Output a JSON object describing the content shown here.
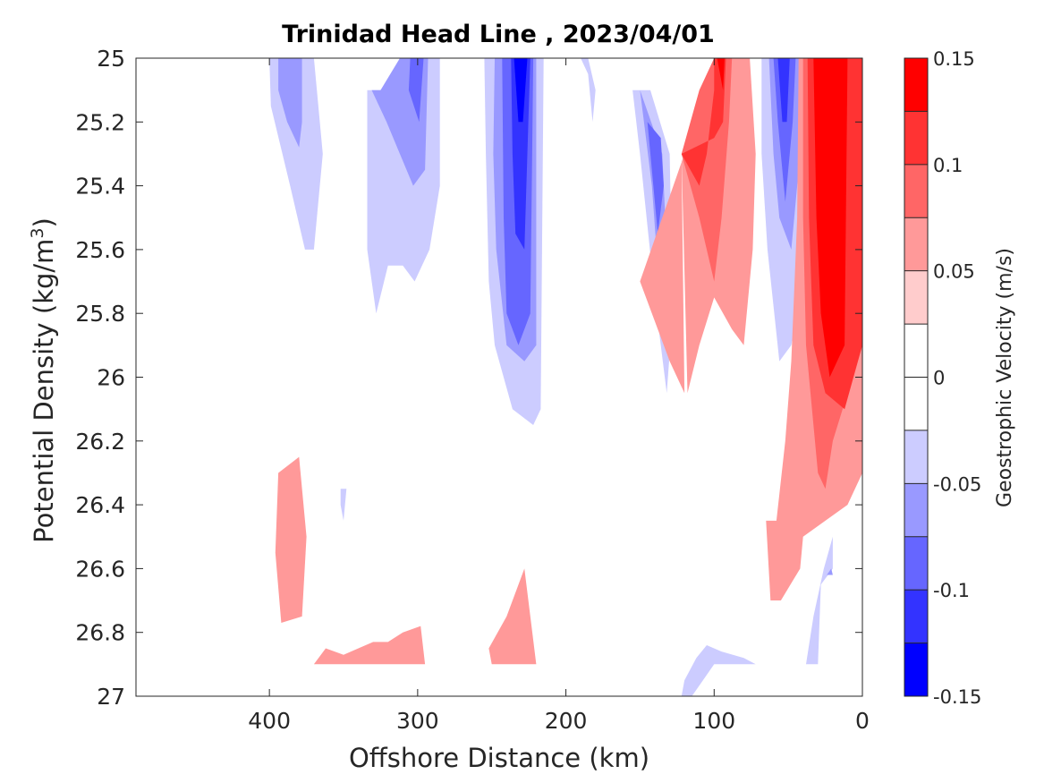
{
  "chart_data": {
    "type": "contour",
    "title": "Trinidad Head Line , 2023/04/01",
    "xlabel": "Offshore Distance (km)",
    "ylabel_main": "Potential Density (kg/m",
    "ylabel_sup": "3",
    "ylabel_end": ")",
    "colorbar_label": "Geostrophic Velocity (m/s)",
    "xlim": [
      490,
      0
    ],
    "ylim": [
      25,
      27
    ],
    "x_ticks": [
      400,
      300,
      200,
      100,
      0
    ],
    "x_tick_labels": [
      "400",
      "300",
      "200",
      "100",
      "0"
    ],
    "y_ticks": [
      25,
      25.2,
      25.4,
      25.6,
      25.8,
      26,
      26.2,
      26.4,
      26.6,
      26.8,
      27
    ],
    "y_tick_labels": [
      "25",
      "25.2",
      "25.4",
      "25.6",
      "25.8",
      "26",
      "26.2",
      "26.4",
      "26.6",
      "26.8",
      "27"
    ],
    "colorbar_range": [
      -0.15,
      0.15
    ],
    "colorbar_ticks": [
      0.15,
      0.1,
      0.05,
      0,
      -0.05,
      -0.1,
      -0.15
    ],
    "colorbar_tick_labels": [
      "0.15",
      "0.1",
      "0.05",
      "0",
      "-0.05",
      "-0.1",
      "-0.15"
    ],
    "levels": [
      {
        "range": [
          0.125,
          0.15
        ],
        "color": "#ff0000"
      },
      {
        "range": [
          0.1,
          0.125
        ],
        "color": "#ff3333"
      },
      {
        "range": [
          0.075,
          0.1
        ],
        "color": "#ff6666"
      },
      {
        "range": [
          0.05,
          0.075
        ],
        "color": "#ff9999"
      },
      {
        "range": [
          0.025,
          0.05
        ],
        "color": "#ffcccc"
      },
      {
        "range": [
          0,
          0.025
        ],
        "color": "#ffffff"
      },
      {
        "range": [
          -0.025,
          0
        ],
        "color": "#ffffff"
      },
      {
        "range": [
          -0.05,
          -0.025
        ],
        "color": "#ccccff"
      },
      {
        "range": [
          -0.075,
          -0.05
        ],
        "color": "#9999ff"
      },
      {
        "range": [
          -0.1,
          -0.075
        ],
        "color": "#6666ff"
      },
      {
        "range": [
          -0.125,
          -0.1
        ],
        "color": "#3333ff"
      },
      {
        "range": [
          -0.15,
          -0.125
        ],
        "color": "#0000ff"
      }
    ],
    "regions": [
      {
        "level": -0.05,
        "points": [
          [
            400,
            25
          ],
          [
            370,
            25
          ],
          [
            364,
            25.3
          ],
          [
            370,
            25.6
          ],
          [
            376,
            25.6
          ],
          [
            386,
            25.4
          ],
          [
            399,
            25.15
          ]
        ]
      },
      {
        "level": -0.075,
        "points": [
          [
            394,
            25
          ],
          [
            378,
            25
          ],
          [
            378,
            25.2
          ],
          [
            380,
            25.28
          ],
          [
            388,
            25.2
          ],
          [
            394,
            25.1
          ]
        ]
      },
      {
        "level": -0.05,
        "points": [
          [
            310,
            25
          ],
          [
            285,
            25
          ],
          [
            285,
            25.4
          ],
          [
            292,
            25.6
          ],
          [
            302,
            25.7
          ],
          [
            310,
            25.65
          ],
          [
            320,
            25.65
          ],
          [
            328,
            25.8
          ],
          [
            334,
            25.6
          ],
          [
            334,
            25.1
          ],
          [
            325,
            25.1
          ],
          [
            312,
            25.03
          ]
        ]
      },
      {
        "level": -0.075,
        "points": [
          [
            312,
            25
          ],
          [
            293,
            25
          ],
          [
            295,
            25.35
          ],
          [
            303,
            25.4
          ],
          [
            312,
            25.3
          ],
          [
            321,
            25.2
          ],
          [
            331,
            25.1
          ],
          [
            325,
            25.1
          ]
        ]
      },
      {
        "level": -0.1,
        "points": [
          [
            305,
            25
          ],
          [
            296,
            25
          ],
          [
            299,
            25.2
          ],
          [
            306,
            25.1
          ]
        ]
      },
      {
        "level": -0.05,
        "points": [
          [
            255,
            25
          ],
          [
            215,
            25
          ],
          [
            217,
            26.1
          ],
          [
            222,
            26.15
          ],
          [
            236,
            26.1
          ],
          [
            248,
            25.9
          ],
          [
            252,
            25.7
          ],
          [
            254,
            25.3
          ]
        ]
      },
      {
        "level": -0.075,
        "points": [
          [
            248,
            25
          ],
          [
            220,
            25
          ],
          [
            220,
            25.9
          ],
          [
            228,
            25.95
          ],
          [
            240,
            25.9
          ],
          [
            247,
            25.6
          ],
          [
            249,
            25.3
          ]
        ]
      },
      {
        "level": -0.1,
        "points": [
          [
            243,
            25
          ],
          [
            222,
            25
          ],
          [
            224,
            25.8
          ],
          [
            232,
            25.9
          ],
          [
            240,
            25.8
          ],
          [
            242,
            25.5
          ]
        ]
      },
      {
        "level": -0.125,
        "points": [
          [
            237,
            25
          ],
          [
            224,
            25
          ],
          [
            228,
            25.6
          ],
          [
            234,
            25.55
          ],
          [
            236,
            25.3
          ]
        ]
      },
      {
        "level": -0.15,
        "points": [
          [
            235,
            25
          ],
          [
            226,
            25
          ],
          [
            229,
            25.2
          ],
          [
            232,
            25.2
          ]
        ]
      },
      {
        "level": -0.05,
        "points": [
          [
            190,
            25
          ],
          [
            185,
            25.05
          ],
          [
            182,
            25.2
          ],
          [
            180,
            25.1
          ],
          [
            185,
            25
          ]
        ]
      },
      {
        "level": -0.05,
        "points": [
          [
            155,
            25.1
          ],
          [
            150,
            25.3
          ],
          [
            140,
            25.75
          ],
          [
            132,
            26.05
          ],
          [
            128,
            25.8
          ],
          [
            130,
            25.3
          ],
          [
            143,
            25.1
          ]
        ]
      },
      {
        "level": -0.075,
        "points": [
          [
            150,
            25.1
          ],
          [
            142,
            25.4
          ],
          [
            135,
            25.85
          ],
          [
            132,
            25.6
          ],
          [
            135,
            25.3
          ]
        ]
      },
      {
        "level": -0.1,
        "points": [
          [
            145,
            25.2
          ],
          [
            138,
            25.55
          ],
          [
            134,
            25.4
          ],
          [
            136,
            25.25
          ]
        ]
      },
      {
        "level": 0.05,
        "points": [
          [
            122,
            25.3
          ],
          [
            120,
            26.05
          ],
          [
            130,
            25.95
          ],
          [
            150,
            25.7
          ],
          [
            120,
            25.3
          ],
          [
            100,
            25
          ],
          [
            76,
            25
          ],
          [
            72,
            25.3
          ],
          [
            74,
            25.6
          ],
          [
            80,
            25.9
          ],
          [
            88,
            25.85
          ],
          [
            100,
            25.75
          ],
          [
            110,
            25.9
          ],
          [
            118,
            26.05
          ]
        ]
      },
      {
        "level": 0.075,
        "points": [
          [
            122,
            25.3
          ],
          [
            110,
            25.5
          ],
          [
            100,
            25.7
          ],
          [
            95,
            25.5
          ],
          [
            90,
            25.2
          ],
          [
            88,
            25
          ],
          [
            100,
            25
          ],
          [
            110,
            25.1
          ]
        ]
      },
      {
        "level": 0.1,
        "points": [
          [
            122,
            25.3
          ],
          [
            110,
            25.4
          ],
          [
            105,
            25.3
          ],
          [
            100,
            25.1
          ],
          [
            100,
            25
          ],
          [
            92,
            25
          ],
          [
            94,
            25.2
          ],
          [
            100,
            25.25
          ]
        ]
      },
      {
        "level": 0.125,
        "points": [
          [
            98,
            25
          ],
          [
            93,
            25
          ],
          [
            94,
            25.1
          ]
        ]
      },
      {
        "level": -0.05,
        "points": [
          [
            68,
            25
          ],
          [
            36,
            25
          ],
          [
            40,
            25.5
          ],
          [
            44,
            25.8
          ],
          [
            48,
            25.9
          ],
          [
            56,
            25.95
          ],
          [
            64,
            25.6
          ],
          [
            68,
            25.3
          ]
        ]
      },
      {
        "level": -0.075,
        "points": [
          [
            63,
            25
          ],
          [
            40,
            25
          ],
          [
            42,
            25.3
          ],
          [
            48,
            25.6
          ],
          [
            56,
            25.5
          ],
          [
            60,
            25.3
          ]
        ]
      },
      {
        "level": -0.1,
        "points": [
          [
            60,
            25
          ],
          [
            45,
            25
          ],
          [
            47,
            25.2
          ],
          [
            52,
            25.45
          ],
          [
            57,
            25.2
          ]
        ]
      },
      {
        "level": -0.125,
        "points": [
          [
            57,
            25
          ],
          [
            49,
            25
          ],
          [
            51,
            25.2
          ],
          [
            54,
            25.2
          ]
        ]
      },
      {
        "level": 0.05,
        "points": [
          [
            43,
            25
          ],
          [
            0,
            25
          ],
          [
            0,
            26.3
          ],
          [
            10,
            26.4
          ],
          [
            25,
            26.45
          ],
          [
            40,
            26.5
          ],
          [
            42,
            26.6
          ],
          [
            55,
            26.7
          ],
          [
            62,
            26.7
          ],
          [
            65,
            26.45
          ],
          [
            58,
            26.45
          ],
          [
            52,
            26.2
          ],
          [
            48,
            25.95
          ],
          [
            44,
            25.5
          ]
        ]
      },
      {
        "level": 0.075,
        "points": [
          [
            40,
            25
          ],
          [
            0,
            25
          ],
          [
            0,
            25.9
          ],
          [
            20,
            26.2
          ],
          [
            25,
            26.35
          ],
          [
            30,
            26.3
          ],
          [
            38,
            25.9
          ],
          [
            40,
            25.5
          ]
        ]
      },
      {
        "level": 0.1,
        "points": [
          [
            37,
            25
          ],
          [
            0,
            25
          ],
          [
            0,
            25.9
          ],
          [
            12,
            26.1
          ],
          [
            25,
            26.05
          ],
          [
            33,
            25.9
          ],
          [
            36,
            25.5
          ]
        ]
      },
      {
        "level": 0.125,
        "points": [
          [
            33,
            25
          ],
          [
            10,
            25
          ],
          [
            12,
            25.9
          ],
          [
            22,
            26
          ],
          [
            28,
            25.8
          ],
          [
            31,
            25.5
          ]
        ]
      },
      {
        "level": 0.15,
        "points": [
          [
            30,
            25
          ],
          [
            12,
            25
          ],
          [
            12,
            25.8
          ],
          [
            20,
            25.8
          ],
          [
            28,
            25.6
          ]
        ]
      },
      {
        "level": 0.05,
        "points": [
          [
            394,
            26.3
          ],
          [
            380,
            26.25
          ],
          [
            375,
            26.5
          ],
          [
            378,
            26.75
          ],
          [
            392,
            26.77
          ],
          [
            396,
            26.55
          ]
        ]
      },
      {
        "level": -0.05,
        "points": [
          [
            352,
            26.35
          ],
          [
            348,
            26.35
          ],
          [
            350,
            26.45
          ],
          [
            352,
            26.4
          ]
        ]
      },
      {
        "level": 0.05,
        "points": [
          [
            362,
            26.85
          ],
          [
            370,
            26.9
          ],
          [
            330,
            26.9
          ],
          [
            295,
            26.9
          ],
          [
            298,
            26.78
          ],
          [
            310,
            26.8
          ],
          [
            320,
            26.83
          ],
          [
            330,
            26.83
          ],
          [
            340,
            26.85
          ],
          [
            350,
            26.87
          ]
        ]
      },
      {
        "level": 0.05,
        "points": [
          [
            252,
            26.85
          ],
          [
            250,
            26.9
          ],
          [
            225,
            26.9
          ],
          [
            220,
            26.9
          ],
          [
            228,
            26.6
          ],
          [
            240,
            26.75
          ]
        ]
      },
      {
        "level": -0.05,
        "points": [
          [
            120,
            26.95
          ],
          [
            112,
            26.88
          ],
          [
            105,
            26.84
          ],
          [
            95,
            26.86
          ],
          [
            80,
            26.88
          ],
          [
            72,
            26.9
          ],
          [
            85,
            26.9
          ],
          [
            100,
            26.9
          ],
          [
            115,
            27
          ],
          [
            122,
            27
          ]
        ]
      },
      {
        "level": -0.05,
        "points": [
          [
            38,
            26.9
          ],
          [
            30,
            26.9
          ],
          [
            28,
            26.65
          ],
          [
            20,
            26.6
          ],
          [
            20,
            26.5
          ],
          [
            26,
            26.6
          ],
          [
            33,
            26.75
          ]
        ]
      },
      {
        "level": -0.075,
        "points": [
          [
            24,
            26.62
          ],
          [
            20,
            26.62
          ],
          [
            21,
            26.6
          ]
        ]
      }
    ]
  }
}
